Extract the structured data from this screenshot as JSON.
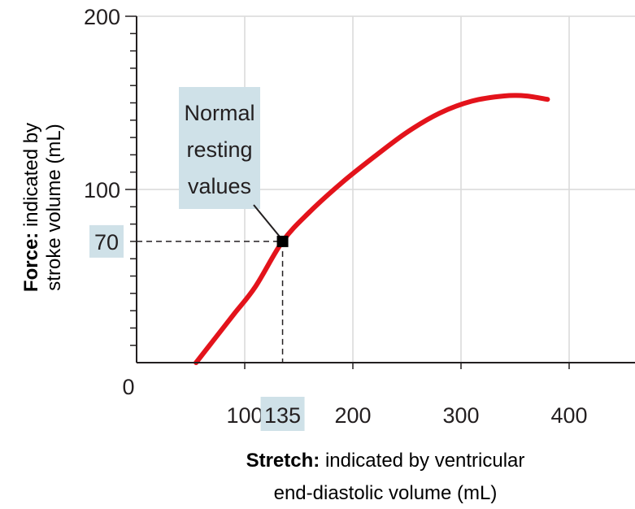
{
  "chart_data": {
    "type": "line",
    "title": "",
    "xlabel": {
      "bold": "Stretch:",
      "rest": "indicated by ventricular",
      "line2": "end-diastolic volume (mL)"
    },
    "ylabel": {
      "bold": "Force:",
      "rest": "indicated by",
      "line2": "stroke volume (mL)"
    },
    "xlim": [
      0,
      460
    ],
    "ylim": [
      0,
      200
    ],
    "x_ticks": [
      {
        "value": 100,
        "label": "100"
      },
      {
        "value": 200,
        "label": "200"
      },
      {
        "value": 300,
        "label": "300"
      },
      {
        "value": 400,
        "label": "400"
      }
    ],
    "x_origin_label": "0",
    "y_ticks": [
      {
        "value": 100,
        "label": "100"
      },
      {
        "value": 200,
        "label": "200"
      }
    ],
    "grid": true,
    "series": [
      {
        "color": "#e3131b",
        "points": [
          [
            55,
            0
          ],
          [
            70,
            12
          ],
          [
            90,
            28
          ],
          [
            110,
            44
          ],
          [
            135,
            70
          ],
          [
            160,
            87
          ],
          [
            190,
            104
          ],
          [
            220,
            119
          ],
          [
            250,
            133
          ],
          [
            280,
            144
          ],
          [
            310,
            151
          ],
          [
            340,
            154
          ],
          [
            360,
            154
          ],
          [
            380,
            152
          ]
        ]
      }
    ],
    "highlight": {
      "x": 135,
      "y": 70,
      "x_label": "135",
      "y_label": "70",
      "annotation": [
        "Normal",
        "resting",
        "values"
      ]
    }
  }
}
